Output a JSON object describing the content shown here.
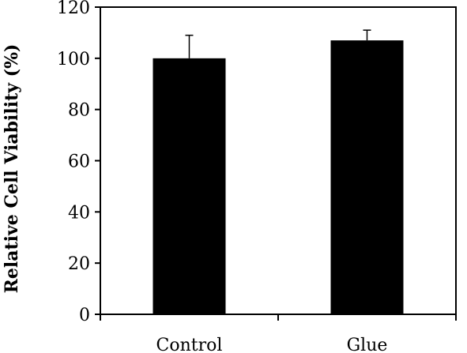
{
  "chart_data": {
    "type": "bar",
    "title": "",
    "xlabel": "",
    "ylabel": "Relative Cell Viability (%)",
    "categories": [
      "Control",
      "Glue"
    ],
    "series": [
      {
        "values": [
          100,
          107
        ],
        "error_plus": [
          9,
          4
        ],
        "color": "#000000"
      }
    ],
    "ylim": [
      0,
      120
    ],
    "yticks": [
      0,
      20,
      40,
      60,
      80,
      100,
      120
    ],
    "grid": false,
    "legend": "none"
  }
}
